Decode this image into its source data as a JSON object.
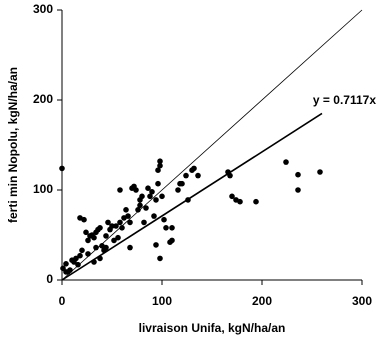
{
  "chart_data": {
    "type": "scatter",
    "x_label": "livraison Unifa, kgN/ha/an",
    "y_label": "ferti min Nopolu, kgN/ha/an",
    "annotation": "y = 0.7117x",
    "color": "#000000",
    "xlim": [
      0,
      300
    ],
    "ylim": [
      0,
      300
    ],
    "xticks": [
      0,
      100,
      200,
      300
    ],
    "yticks": [
      0,
      100,
      200,
      300
    ],
    "x": [
      1,
      4,
      6,
      8,
      10,
      12,
      14,
      16,
      18,
      20,
      18,
      22,
      24,
      26,
      28,
      30,
      32,
      34,
      36,
      38,
      40,
      42,
      44,
      46,
      48,
      50,
      52,
      54,
      56,
      58,
      60,
      62,
      64,
      66,
      68,
      70,
      72,
      74,
      76,
      78,
      80,
      82,
      84,
      86,
      88,
      90,
      92,
      94,
      96,
      98,
      98,
      96,
      98,
      94,
      100,
      102,
      108,
      110,
      116,
      118,
      120,
      124,
      126,
      130,
      132,
      136,
      110,
      104,
      166,
      168,
      170,
      174,
      178,
      194,
      224,
      236,
      236,
      258,
      44,
      34,
      38,
      26,
      32,
      4,
      0,
      58,
      78,
      68
    ],
    "values": [
      13,
      18,
      9,
      11,
      22,
      20,
      24,
      17,
      27,
      33,
      69,
      67,
      53,
      44,
      49,
      50,
      47,
      53,
      56,
      58,
      38,
      33,
      49,
      64,
      56,
      60,
      44,
      60,
      47,
      64,
      58,
      69,
      78,
      71,
      64,
      102,
      104,
      100,
      78,
      89,
      93,
      64,
      80,
      102,
      93,
      98,
      71,
      89,
      107,
      132,
      127,
      122,
      24,
      39,
      93,
      67,
      42,
      44,
      100,
      107,
      107,
      116,
      89,
      122,
      124,
      116,
      58,
      58,
      120,
      116,
      93,
      89,
      87,
      87,
      131,
      100,
      117,
      120,
      36,
      36,
      24,
      29,
      20,
      9,
      124,
      100,
      83,
      36
    ],
    "lines": [
      {
        "x": [
          0,
          300
        ],
        "values": [
          0,
          300
        ],
        "color": "#000000"
      },
      {
        "x": [
          0,
          260
        ],
        "values": [
          0,
          185.042
        ],
        "color": "#000000"
      }
    ]
  }
}
